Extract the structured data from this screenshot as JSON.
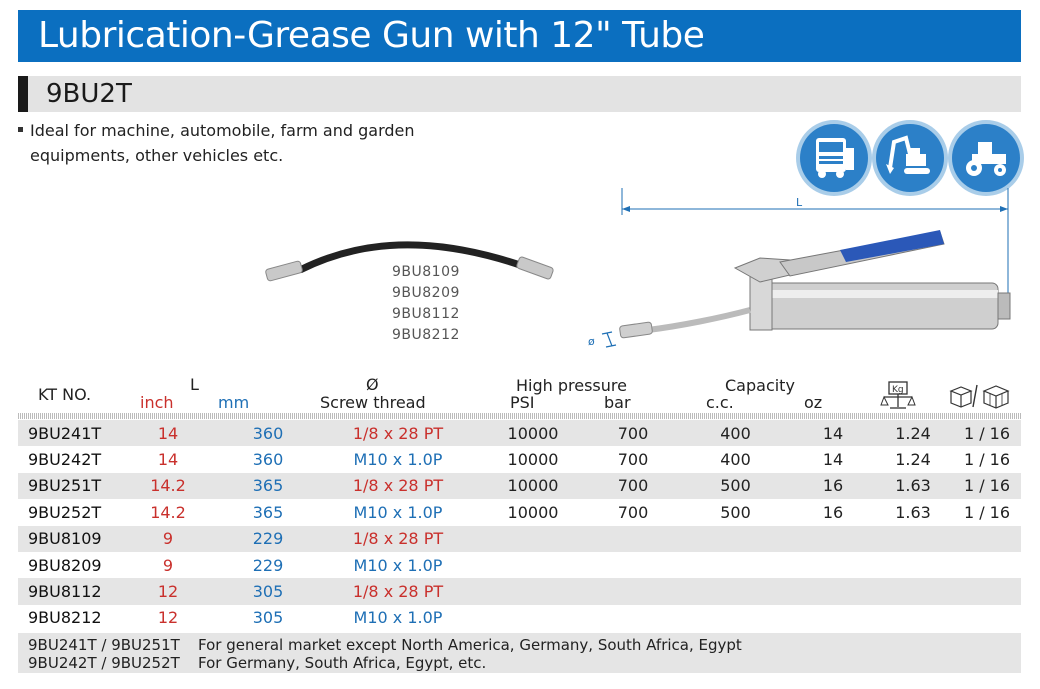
{
  "title": "Lubrication-Grease Gun with 12\" Tube",
  "model": "9BU2T",
  "bullet": "Ideal for machine, automobile, farm and garden equipments, other vehicles etc.",
  "icons": [
    "truck-icon",
    "excavator-icon",
    "tractor-icon"
  ],
  "hose_models": [
    "9BU8109",
    "9BU8209",
    "9BU8112",
    "9BU8212"
  ],
  "dimension_label": "L",
  "diameter_label": "ø",
  "table": {
    "headers": {
      "kt": "KT NO.",
      "L": "L",
      "inch": "inch",
      "mm": "mm",
      "dia_symbol": "Ø",
      "thread": "Screw thread",
      "pressure": "High pressure",
      "psi": "PSI",
      "bar": "bar",
      "capacity": "Capacity",
      "cc": "c.c.",
      "oz": "oz",
      "weight_icon": "scale-kg-icon",
      "pack_icon": "carton-box-icon"
    },
    "rows": [
      {
        "kt": "9BU241T",
        "inch": "14",
        "mm": "360",
        "thread": "1/8 x 28 PT",
        "thread_color": "red",
        "psi": "10000",
        "bar": "700",
        "cc": "400",
        "oz": "14",
        "kg": "1.24",
        "pack": "1 / 16"
      },
      {
        "kt": "9BU242T",
        "inch": "14",
        "mm": "360",
        "thread": "M10 x 1.0P",
        "thread_color": "blue",
        "psi": "10000",
        "bar": "700",
        "cc": "400",
        "oz": "14",
        "kg": "1.24",
        "pack": "1 / 16"
      },
      {
        "kt": "9BU251T",
        "inch": "14.2",
        "mm": "365",
        "thread": "1/8 x 28 PT",
        "thread_color": "red",
        "psi": "10000",
        "bar": "700",
        "cc": "500",
        "oz": "16",
        "kg": "1.63",
        "pack": "1 / 16"
      },
      {
        "kt": "9BU252T",
        "inch": "14.2",
        "mm": "365",
        "thread": "M10 x 1.0P",
        "thread_color": "blue",
        "psi": "10000",
        "bar": "700",
        "cc": "500",
        "oz": "16",
        "kg": "1.63",
        "pack": "1 / 16"
      },
      {
        "kt": "9BU8109",
        "inch": "9",
        "mm": "229",
        "thread": "1/8 x 28 PT",
        "thread_color": "red",
        "psi": "",
        "bar": "",
        "cc": "",
        "oz": "",
        "kg": "",
        "pack": ""
      },
      {
        "kt": "9BU8209",
        "inch": "9",
        "mm": "229",
        "thread": "M10 x 1.0P",
        "thread_color": "blue",
        "psi": "",
        "bar": "",
        "cc": "",
        "oz": "",
        "kg": "",
        "pack": ""
      },
      {
        "kt": "9BU8112",
        "inch": "12",
        "mm": "305",
        "thread": "1/8 x 28 PT",
        "thread_color": "red",
        "psi": "",
        "bar": "",
        "cc": "",
        "oz": "",
        "kg": "",
        "pack": ""
      },
      {
        "kt": "9BU8212",
        "inch": "12",
        "mm": "305",
        "thread": "M10 x 1.0P",
        "thread_color": "blue",
        "psi": "",
        "bar": "",
        "cc": "",
        "oz": "",
        "kg": "",
        "pack": ""
      }
    ]
  },
  "footnotes": [
    {
      "models": "9BU241T / 9BU251T",
      "text": "For general market except North America, Germany, South Africa, Egypt"
    },
    {
      "models": "9BU242T / 9BU252T",
      "text": "For Germany, South Africa, Egypt, etc."
    }
  ],
  "colors": {
    "brand_blue": "#0b6fc0",
    "inch_red": "#c9302c",
    "mm_blue": "#1e6fb5",
    "row_gray": "#e5e5e5"
  }
}
